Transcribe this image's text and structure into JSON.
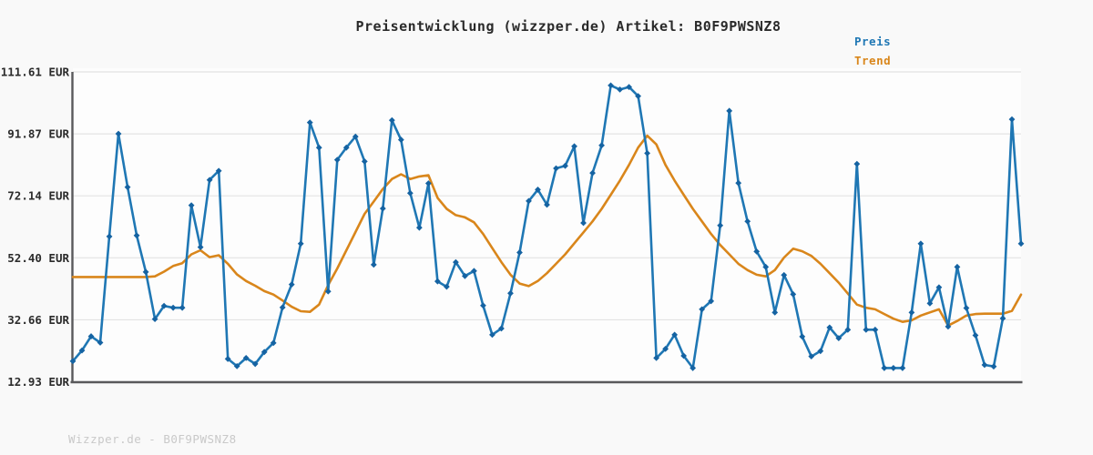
{
  "header": {
    "title": "Preisentwicklung (wizzper.de) Artikel: B0F9PWSNZ8"
  },
  "legend": {
    "items": [
      {
        "label": "Preis",
        "color": "#1f77b4"
      },
      {
        "label": "Trend",
        "color": "#d9861b"
      }
    ]
  },
  "footer": {
    "watermark": "Wizzper.de - B0F9PWSNZ8"
  },
  "chart_data": {
    "type": "line",
    "title": "Preisentwicklung (wizzper.de) Artikel: B0F9PWSNZ8",
    "currency": "EUR",
    "grid": true,
    "legend_position": "top-right",
    "ylim": [
      12.93,
      111.61
    ],
    "y_axis": {
      "tick_labels": [
        "111.61 EUR",
        "91.87 EUR",
        "72.14 EUR",
        "52.40 EUR",
        "32.66 EUR",
        "12.93 EUR"
      ],
      "tick_values": [
        111.61,
        91.87,
        72.14,
        52.4,
        32.66,
        12.93
      ]
    },
    "x_axis": {
      "type": "index",
      "labels_visible": false,
      "n_points": 105
    },
    "series": [
      {
        "name": "Preis",
        "color": "#1f77b4",
        "marker": "diamond",
        "marker_color": "#1563a2",
        "values": [
          19.5,
          22.9,
          27.4,
          25.4,
          59.2,
          91.9,
          74.9,
          59.5,
          47.9,
          32.9,
          37.1,
          36.5,
          36.5,
          69.1,
          55.8,
          77.2,
          80.1,
          20.2,
          17.9,
          20.5,
          18.6,
          22.4,
          25.3,
          36.6,
          43.9,
          56.9,
          95.5,
          87.5,
          41.7,
          83.6,
          87.5,
          91.0,
          83.1,
          50.2,
          68.1,
          96.2,
          90.0,
          73.0,
          62.0,
          76.1,
          44.9,
          43.2,
          51.0,
          46.6,
          48.2,
          37.2,
          27.9,
          29.9,
          41.1,
          54.1,
          70.5,
          74.1,
          69.3,
          80.9,
          81.7,
          87.9,
          63.5,
          79.4,
          88.2,
          107.3,
          106.0,
          106.8,
          103.9,
          85.7,
          20.5,
          23.4,
          27.9,
          21.2,
          17.3,
          36.0,
          38.6,
          62.7,
          99.2,
          76.2,
          64.0,
          54.4,
          49.5,
          35.0,
          46.9,
          40.8,
          27.3,
          21.0,
          22.7,
          30.2,
          26.8,
          29.5,
          82.3,
          29.5,
          29.5,
          17.3,
          17.3,
          17.3,
          35.0,
          56.9,
          37.9,
          43.0,
          30.5,
          49.5,
          36.4,
          27.7,
          18.3,
          17.8,
          33.1,
          96.5,
          56.9
        ]
      },
      {
        "name": "Trend",
        "color": "#d9861b",
        "marker": "none",
        "values": [
          46.3,
          46.3,
          46.3,
          46.3,
          46.3,
          46.3,
          46.3,
          46.3,
          46.3,
          46.5,
          48.0,
          49.8,
          50.7,
          53.5,
          54.8,
          52.6,
          53.2,
          50.5,
          47.1,
          45.0,
          43.5,
          41.8,
          40.7,
          38.8,
          36.8,
          35.4,
          35.2,
          37.5,
          43.7,
          49.0,
          54.8,
          60.6,
          66.4,
          70.3,
          74.3,
          77.5,
          79.0,
          77.5,
          78.3,
          78.7,
          71.5,
          68.0,
          66.0,
          65.3,
          63.7,
          60.0,
          55.5,
          51.0,
          47.0,
          44.2,
          43.4,
          45.0,
          47.5,
          50.5,
          53.5,
          57.0,
          60.5,
          64.0,
          68.0,
          72.5,
          77.0,
          82.0,
          87.5,
          91.3,
          88.5,
          82.0,
          77.0,
          72.5,
          68.0,
          64.0,
          60.0,
          56.5,
          53.5,
          50.5,
          48.5,
          47.0,
          46.5,
          48.5,
          52.5,
          55.3,
          54.5,
          53.0,
          50.5,
          47.5,
          44.5,
          41.0,
          37.5,
          36.5,
          36.0,
          34.5,
          33.0,
          32.0,
          32.5,
          34.0,
          35.0,
          36.0,
          30.8,
          32.3,
          34.0,
          34.5,
          34.6,
          34.6,
          34.6,
          35.5,
          40.7
        ]
      }
    ]
  }
}
